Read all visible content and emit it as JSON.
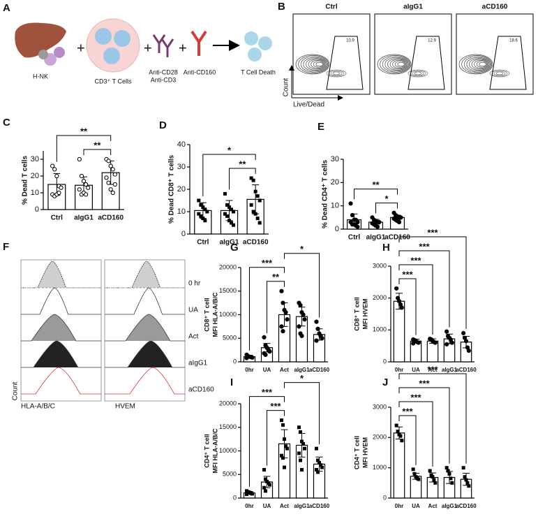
{
  "schematic": {
    "panel": "A",
    "labels": [
      "H-NK",
      "CD3⁺ T Cells",
      "Anti-CD28",
      "Anti-CD3",
      "Anti-CD160",
      "T Cell Death"
    ]
  },
  "flow": {
    "panel": "B",
    "ylabel": "Count",
    "xlabel": "Live/Dead",
    "plots": [
      {
        "title": "Ctrl",
        "gate": "10.9"
      },
      {
        "title": "aIgG1",
        "gate": "12.9"
      },
      {
        "title": "aCD160",
        "gate": "18.6"
      }
    ]
  },
  "histograms": {
    "panel": "F",
    "rows": [
      "0 hr",
      "UA",
      "Act",
      "aIgG1",
      "aCD160"
    ],
    "markers": [
      "HLA-A/B/C",
      "HVEM"
    ],
    "ylabel": "Count"
  },
  "chart_data": [
    {
      "type": "bar",
      "panel": "C",
      "ylabel": [
        "% Dead T cells"
      ],
      "marker": "open-circle",
      "categories": [
        "Ctrl",
        "aIgG1",
        "aCD160"
      ],
      "values": [
        15,
        14.5,
        22
      ],
      "errors": [
        6.5,
        5,
        7
      ],
      "points": [
        [
          26,
          24,
          20,
          14,
          13,
          9,
          8,
          9,
          10
        ],
        [
          30,
          20,
          17,
          15,
          13,
          12,
          9,
          10,
          9
        ],
        [
          30,
          29,
          26,
          24,
          21,
          19,
          16,
          12,
          10,
          15
        ]
      ],
      "ylim": [
        0,
        35
      ],
      "yticks": [
        0,
        10,
        20,
        30
      ],
      "comparisons": [
        {
          "label": "**",
          "groups": [
            0,
            2
          ]
        },
        {
          "label": "**",
          "groups": [
            1,
            2
          ]
        }
      ]
    },
    {
      "type": "bar",
      "panel": "D",
      "ylabel": [
        "% Dead CD8⁺ T cells"
      ],
      "marker": "square",
      "categories": [
        "Ctrl",
        "aIgG1",
        "aCD160"
      ],
      "values": [
        10.5,
        10.5,
        15.5
      ],
      "errors": [
        3.5,
        4.5,
        6.5
      ],
      "points": [
        [
          15,
          13,
          12,
          11,
          10,
          9,
          8,
          7,
          6
        ],
        [
          18,
          13,
          12,
          11,
          10,
          9,
          8,
          6,
          5,
          4
        ],
        [
          25,
          24,
          19,
          17,
          15,
          13,
          10,
          9,
          7,
          5
        ]
      ],
      "ylim": [
        0,
        40
      ],
      "yticks": [
        0,
        10,
        20,
        30,
        40
      ],
      "comparisons": [
        {
          "label": "*",
          "groups": [
            0,
            2
          ]
        },
        {
          "label": "**",
          "groups": [
            1,
            2
          ]
        }
      ]
    },
    {
      "type": "bar",
      "panel": "E",
      "ylabel": [
        "% Dead CD4⁺ T cells"
      ],
      "marker": "circle",
      "categories": [
        "Ctrl",
        "aIgG1",
        "aCD160"
      ],
      "values": [
        4,
        3,
        5
      ],
      "errors": [
        2.5,
        1.2,
        1
      ],
      "points": [
        [
          11,
          6,
          4,
          4,
          3,
          3,
          2,
          2,
          1.5,
          1
        ],
        [
          5,
          4,
          3.5,
          3,
          3,
          2.5,
          2,
          1.5,
          1
        ],
        [
          7,
          6,
          5.5,
          5,
          5,
          4.5,
          4,
          3.5,
          3
        ]
      ],
      "ylim": [
        0,
        30
      ],
      "yticks": [
        0,
        10,
        20,
        30
      ],
      "comparisons": [
        {
          "label": "**",
          "groups": [
            0,
            2
          ]
        },
        {
          "label": "*",
          "groups": [
            1,
            2
          ]
        }
      ]
    },
    {
      "type": "bar",
      "panel": "G",
      "ylabel": [
        "CD8⁺ T cell",
        "MFI HLA-A/B/C"
      ],
      "marker": "circle",
      "categories": [
        "0hr",
        "UA",
        "Act",
        "aIgG1",
        "aCD160"
      ],
      "values": [
        1100,
        3000,
        10000,
        9600,
        5800
      ],
      "errors": [
        300,
        900,
        2500,
        2000,
        1200
      ],
      "points": [
        [
          1500,
          1200,
          1100,
          1000,
          900,
          800
        ],
        [
          5200,
          3500,
          3000,
          2600,
          2200,
          1800,
          1500
        ],
        [
          15000,
          12500,
          11000,
          10500,
          9000,
          7500,
          6500
        ],
        [
          12500,
          12000,
          10500,
          10000,
          9000,
          7500,
          6000,
          5500
        ],
        [
          8500,
          7000,
          6000,
          5500,
          5000,
          4500
        ]
      ],
      "ylim": [
        0,
        20000
      ],
      "yticks": [
        0,
        5000,
        10000,
        15000,
        20000
      ],
      "comparisons": [
        {
          "label": "***",
          "groups": [
            0,
            2
          ]
        },
        {
          "label": "**",
          "groups": [
            1,
            2
          ]
        },
        {
          "label": "*",
          "groups": [
            2,
            4
          ]
        }
      ]
    },
    {
      "type": "bar",
      "panel": "H",
      "ylabel": [
        "CD8⁺ T cell",
        "MFI HVEM"
      ],
      "marker": "circle",
      "categories": [
        "0hr",
        "UA",
        "Act",
        "aIgG1",
        "aCD160"
      ],
      "values": [
        1900,
        650,
        650,
        720,
        620
      ],
      "errors": [
        250,
        60,
        70,
        150,
        180
      ],
      "points": [
        [
          2300,
          2000,
          1900,
          1800,
          1700
        ],
        [
          700,
          680,
          650,
          620,
          600,
          580
        ],
        [
          720,
          700,
          650,
          620,
          600
        ],
        [
          950,
          800,
          750,
          700,
          600,
          550
        ],
        [
          900,
          750,
          650,
          450,
          350
        ]
      ],
      "ylim": [
        0,
        3000
      ],
      "yticks": [
        0,
        1000,
        2000,
        3000
      ],
      "comparisons": [
        {
          "label": "***",
          "groups": [
            0,
            1
          ]
        },
        {
          "label": "***",
          "groups": [
            0,
            2
          ]
        },
        {
          "label": "***",
          "groups": [
            0,
            3
          ]
        },
        {
          "label": "***",
          "groups": [
            0,
            4
          ]
        }
      ]
    },
    {
      "type": "bar",
      "panel": "I",
      "ylabel": [
        "CD4⁺ T cell",
        "MFI HLA-A/B/C"
      ],
      "marker": "square",
      "categories": [
        "0hr",
        "UA",
        "Act",
        "aIgG1",
        "aCD160"
      ],
      "values": [
        1100,
        3400,
        11500,
        11200,
        7200
      ],
      "errors": [
        300,
        1200,
        3000,
        2500,
        1500
      ],
      "points": [
        [
          1500,
          1300,
          1200,
          1000,
          900,
          800
        ],
        [
          6000,
          4000,
          3500,
          3200,
          2800,
          2200,
          1500
        ],
        [
          16500,
          15500,
          12500,
          11000,
          10500,
          9000,
          8500,
          6500
        ],
        [
          15000,
          14000,
          12000,
          11500,
          10500,
          9500,
          8000,
          6000
        ],
        [
          10500,
          8000,
          7500,
          7000,
          6500,
          6000,
          5500
        ]
      ],
      "ylim": [
        0,
        20000
      ],
      "yticks": [
        0,
        5000,
        10000,
        15000,
        20000
      ],
      "comparisons": [
        {
          "label": "***",
          "groups": [
            0,
            2
          ]
        },
        {
          "label": "***",
          "groups": [
            1,
            2
          ]
        },
        {
          "label": "*",
          "groups": [
            2,
            4
          ]
        }
      ]
    },
    {
      "type": "bar",
      "panel": "J",
      "ylabel": [
        "CD4⁺ T cell",
        "MFI HVEM"
      ],
      "marker": "square",
      "categories": [
        "0hr",
        "UA",
        "Act",
        "aIgG1",
        "aCD160"
      ],
      "values": [
        2150,
        720,
        680,
        680,
        620
      ],
      "errors": [
        200,
        100,
        150,
        200,
        200
      ],
      "points": [
        [
          2400,
          2200,
          2100,
          2050,
          1900
        ],
        [
          950,
          800,
          700,
          650,
          620
        ],
        [
          900,
          750,
          700,
          600,
          500
        ],
        [
          1000,
          900,
          800,
          650,
          500
        ],
        [
          1000,
          700,
          600,
          500,
          400
        ]
      ],
      "ylim": [
        0,
        3000
      ],
      "yticks": [
        0,
        1000,
        2000,
        3000
      ],
      "comparisons": [
        {
          "label": "***",
          "groups": [
            0,
            1
          ]
        },
        {
          "label": "***",
          "groups": [
            0,
            2
          ]
        },
        {
          "label": "***",
          "groups": [
            0,
            3
          ]
        },
        {
          "label": "***",
          "groups": [
            0,
            4
          ]
        }
      ]
    }
  ]
}
